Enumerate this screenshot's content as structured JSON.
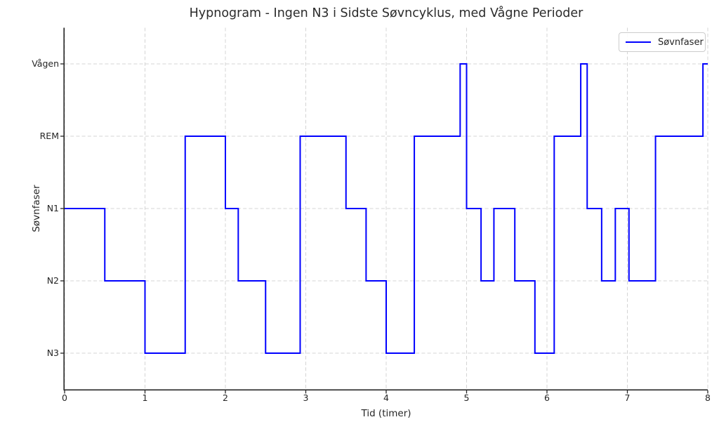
{
  "chart_data": {
    "type": "line",
    "step_mode": "post",
    "title": "Hypnogram - Ingen N3 i Sidste Søvncyklus, med Vågne Perioder",
    "xlabel": "Tid (timer)",
    "ylabel": "Søvnfaser",
    "legend": {
      "label": "Søvnfaser",
      "position": "upper right"
    },
    "line_color": "#0000ff",
    "grid": true,
    "grid_style": "dashed",
    "xlim": [
      0,
      8
    ],
    "x_ticks": [
      0,
      1,
      2,
      3,
      4,
      5,
      6,
      7,
      8
    ],
    "y_tick_labels": [
      "Vågen",
      "REM",
      "N1",
      "N2",
      "N3"
    ],
    "series": [
      {
        "name": "Søvnfaser",
        "points_time_stage": [
          [
            0.0,
            "N1"
          ],
          [
            0.5,
            "N2"
          ],
          [
            1.0,
            "N3"
          ],
          [
            1.5,
            "REM"
          ],
          [
            2.0,
            "N1"
          ],
          [
            2.16,
            "N2"
          ],
          [
            2.5,
            "N3"
          ],
          [
            2.93,
            "REM"
          ],
          [
            3.5,
            "N1"
          ],
          [
            3.75,
            "N2"
          ],
          [
            4.0,
            "N3"
          ],
          [
            4.35,
            "REM"
          ],
          [
            4.92,
            "Vågen"
          ],
          [
            5.0,
            "N1"
          ],
          [
            5.18,
            "N2"
          ],
          [
            5.34,
            "N1"
          ],
          [
            5.6,
            "N2"
          ],
          [
            5.85,
            "N3"
          ],
          [
            6.09,
            "REM"
          ],
          [
            6.42,
            "Vågen"
          ],
          [
            6.5,
            "N1"
          ],
          [
            6.68,
            "N2"
          ],
          [
            6.85,
            "N1"
          ],
          [
            7.02,
            "N2"
          ],
          [
            7.35,
            "REM"
          ],
          [
            7.94,
            "Vågen"
          ]
        ],
        "end_time": 8.0
      }
    ]
  }
}
